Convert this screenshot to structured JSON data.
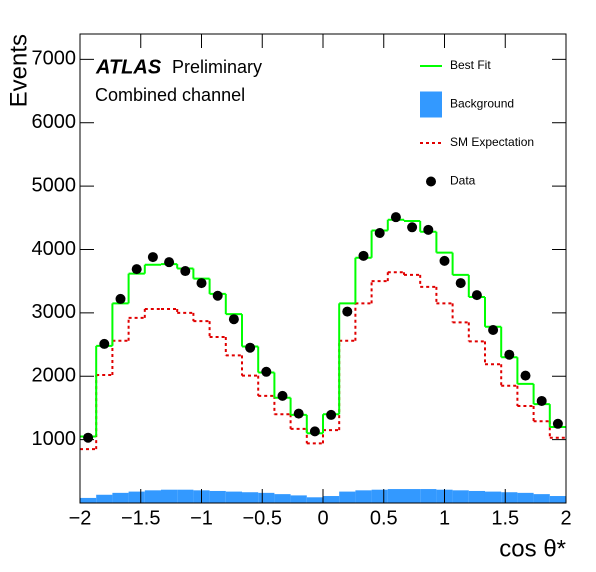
{
  "chart_data": {
    "type": "histogram",
    "experiment": "ATLAS",
    "status": "Preliminary",
    "subtitle": "Combined channel",
    "ylabel": "Events",
    "xlabel": "cos θ*",
    "xlim": [
      -2,
      2
    ],
    "ylim": [
      0,
      7400
    ],
    "xticks": [
      {
        "value": -2,
        "label": "−2"
      },
      {
        "value": -1.5,
        "label": "−1.5"
      },
      {
        "value": -1,
        "label": "−1"
      },
      {
        "value": -0.5,
        "label": "−0.5"
      },
      0,
      0.5,
      1,
      1.5,
      2
    ],
    "yticks": [
      1000,
      2000,
      3000,
      4000,
      5000,
      6000,
      7000
    ],
    "legend": "upper right",
    "bins": [
      -2,
      -1.8667,
      -1.7333,
      -1.6,
      -1.4667,
      -1.3333,
      -1.2,
      -1.0667,
      -0.9333,
      -0.8,
      -0.6667,
      -0.5333,
      -0.4,
      -0.2667,
      -0.1333,
      0,
      0.1333,
      0.2667,
      0.4,
      0.5333,
      0.6667,
      0.8,
      0.9333,
      1.0667,
      1.2,
      1.3333,
      1.4667,
      1.6,
      1.7333,
      1.8667,
      2
    ],
    "series": [
      {
        "name": "Best Fit",
        "style": "step",
        "color": "#00ff00",
        "values": [
          1050,
          2480,
          3150,
          3620,
          3760,
          3770,
          3700,
          3540,
          3300,
          2980,
          2470,
          2060,
          1660,
          1390,
          1100,
          1400,
          3150,
          3870,
          4300,
          4470,
          4450,
          4280,
          3950,
          3600,
          3250,
          2780,
          2300,
          1880,
          1560,
          1200
        ]
      },
      {
        "name": "Background",
        "style": "fill",
        "color": "#3399ff",
        "values": [
          80,
          130,
          160,
          180,
          200,
          210,
          210,
          200,
          190,
          180,
          170,
          160,
          140,
          120,
          90,
          110,
          180,
          200,
          210,
          220,
          220,
          220,
          210,
          200,
          190,
          180,
          170,
          160,
          140,
          110
        ]
      },
      {
        "name": "SM Expectation",
        "style": "dashed-step",
        "color": "#e00000",
        "values": [
          850,
          2020,
          2560,
          2920,
          3060,
          3060,
          3000,
          2870,
          2620,
          2330,
          2010,
          1690,
          1400,
          1170,
          940,
          1150,
          2560,
          3150,
          3500,
          3640,
          3600,
          3410,
          3150,
          2850,
          2550,
          2190,
          1850,
          1530,
          1290,
          1030
        ]
      },
      {
        "name": "Data",
        "style": "points",
        "color": "#000000",
        "values": [
          1030,
          2510,
          3220,
          3690,
          3880,
          3800,
          3660,
          3470,
          3270,
          2900,
          2450,
          2070,
          1690,
          1410,
          1130,
          1390,
          3020,
          3900,
          4260,
          4510,
          4350,
          4310,
          3820,
          3470,
          3280,
          2730,
          2340,
          2010,
          1610,
          1250
        ]
      }
    ]
  }
}
